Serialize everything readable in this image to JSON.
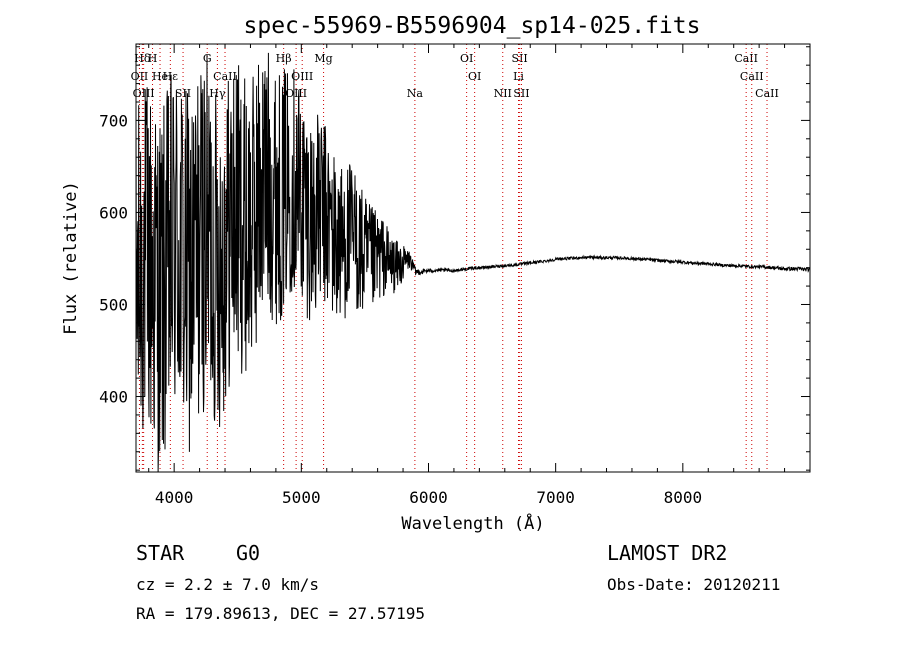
{
  "chart_data": {
    "type": "line",
    "title": "spec-55969-B5596904_sp14-025.fits",
    "xlabel": "Wavelength (Å)",
    "ylabel": "Flux (relative)",
    "xlim": [
      3700,
      9000
    ],
    "ylim": [
      318,
      783
    ],
    "xticks": [
      4000,
      5000,
      6000,
      7000,
      8000
    ],
    "yticks": [
      400,
      500,
      600,
      700
    ],
    "grid": false,
    "legend": "none",
    "series": [
      {
        "x": [
          3700,
          3800,
          3900,
          4000,
          4100,
          4200,
          4300,
          4400,
          4500,
          4600,
          4700,
          4800,
          4900,
          5000,
          5100,
          5200,
          5300,
          5400,
          5500,
          5600,
          5700,
          5800,
          5850,
          5900,
          6000,
          6200,
          6400,
          6600,
          6800,
          7000,
          7200,
          7400,
          7600,
          7800,
          8000,
          8200,
          8400,
          8600,
          8800,
          9000
        ],
        "center": [
          530,
          530,
          535,
          545,
          550,
          560,
          560,
          570,
          585,
          600,
          620,
          630,
          630,
          620,
          600,
          585,
          575,
          565,
          555,
          548,
          545,
          545,
          548,
          535,
          537,
          537,
          540,
          542,
          545,
          549,
          551,
          551,
          550,
          548,
          546,
          544,
          542,
          541,
          539,
          538
        ],
        "amplitude": [
          190,
          200,
          200,
          200,
          200,
          200,
          190,
          180,
          170,
          160,
          150,
          140,
          130,
          120,
          110,
          100,
          90,
          80,
          70,
          50,
          35,
          20,
          10,
          4,
          2,
          1.5,
          1.5,
          1.5,
          1.5,
          1.5,
          1.5,
          1.5,
          1.5,
          1.5,
          1.5,
          1.5,
          1.5,
          1.5,
          2,
          2
        ]
      }
    ],
    "lines": [
      {
        "label": "Hδ",
        "x": 3750,
        "row": 0
      },
      {
        "label": "H",
        "x": 3830,
        "row": 0
      },
      {
        "label": "G",
        "x": 4260,
        "row": 0
      },
      {
        "label": "Hβ",
        "x": 4861,
        "row": 0
      },
      {
        "label": "Mg",
        "x": 5175,
        "row": 0
      },
      {
        "label": "OI",
        "x": 6300,
        "row": 0
      },
      {
        "label": "SII",
        "x": 6717,
        "row": 0
      },
      {
        "label": "CaII",
        "x": 8498,
        "row": 0
      },
      {
        "label": "OII",
        "x": 3727,
        "row": 1
      },
      {
        "label": "He",
        "x": 3889,
        "row": 1
      },
      {
        "label": "Hε",
        "x": 3970,
        "row": 1
      },
      {
        "label": "CaII",
        "x": 4400,
        "row": 1
      },
      {
        "label": "OIII",
        "x": 5007,
        "row": 1
      },
      {
        "label": "OI",
        "x": 6363,
        "row": 1
      },
      {
        "label": "Li",
        "x": 6708,
        "row": 1
      },
      {
        "label": "CaII",
        "x": 8542,
        "row": 1
      },
      {
        "label": "OIII",
        "x": 3760,
        "row": 2
      },
      {
        "label": "SII",
        "x": 4070,
        "row": 2
      },
      {
        "label": "Hγ",
        "x": 4340,
        "row": 2
      },
      {
        "label": "OIII",
        "x": 4959,
        "row": 2
      },
      {
        "label": "Na",
        "x": 5893,
        "row": 2
      },
      {
        "label": "NII",
        "x": 6584,
        "row": 2
      },
      {
        "label": "SII",
        "x": 6731,
        "row": 2
      },
      {
        "label": "CaII",
        "x": 8662,
        "row": 2
      }
    ]
  },
  "info": {
    "class_label": "STAR",
    "subclass": "G0",
    "survey": "LAMOST DR2",
    "cz": "cz = 2.2 ± 7.0 km/s",
    "obs_date": "Obs-Date: 20120211",
    "coords": "RA = 179.89613, DEC =  27.57195"
  }
}
